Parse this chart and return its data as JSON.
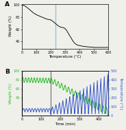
{
  "panel_A": {
    "tga_x": [
      0,
      10,
      20,
      30,
      40,
      50,
      60,
      70,
      80,
      90,
      100,
      110,
      120,
      130,
      140,
      150,
      160,
      170,
      180,
      190,
      200,
      210,
      220,
      230,
      240,
      250,
      260,
      270,
      280,
      290,
      300,
      310,
      320,
      330,
      340,
      350,
      360,
      370,
      380,
      390,
      400,
      410,
      420,
      430,
      440,
      450,
      460,
      470,
      480,
      490,
      500,
      510,
      520,
      530,
      540,
      550,
      560,
      570,
      580,
      590,
      600
    ],
    "tga_y": [
      100,
      99.5,
      98.5,
      97,
      95,
      93,
      91,
      89,
      87,
      85.5,
      84,
      83,
      82,
      81,
      80,
      79,
      78,
      77,
      76.5,
      76,
      75.5,
      74,
      72,
      70,
      68,
      66,
      64.5,
      63.5,
      63,
      62.5,
      61,
      58,
      54,
      50,
      46,
      42,
      38.5,
      36,
      34.5,
      33.5,
      33,
      32.5,
      32,
      31.5,
      31.5,
      31,
      31,
      30.5,
      30.5,
      30.5,
      30,
      30,
      30,
      30,
      30,
      30,
      30,
      30,
      30,
      30,
      30
    ],
    "vline_x": 230,
    "vline_color": "#a0c4cc",
    "xlim": [
      0,
      600
    ],
    "ylim": [
      28,
      102
    ],
    "yticks": [
      40,
      60,
      80,
      100
    ],
    "xticks": [
      0,
      100,
      200,
      300,
      400,
      500,
      600
    ],
    "xlabel": "Temperature (°C)",
    "ylabel": "Weight (%)",
    "label": "A"
  },
  "panel_B": {
    "vline_x": 148,
    "vline_color": "#777777",
    "weight_color": "#22bb22",
    "temp_color": "#3355cc",
    "xlim": [
      0,
      450
    ],
    "weight_ylim": [
      0,
      100
    ],
    "temp_ylim": [
      0,
      500
    ],
    "weight_yticks": [
      40,
      60,
      80,
      100
    ],
    "temp_yticks": [
      0,
      100,
      200,
      300,
      400,
      500
    ],
    "xticks": [
      0,
      100,
      200,
      300,
      400
    ],
    "xlabel": "Time (min)",
    "ylabel_left": "Weight (%)",
    "ylabel_right": "Temperature (°C)",
    "label": "B"
  },
  "background_color": "#f0f0eb",
  "line_color": "#111111"
}
